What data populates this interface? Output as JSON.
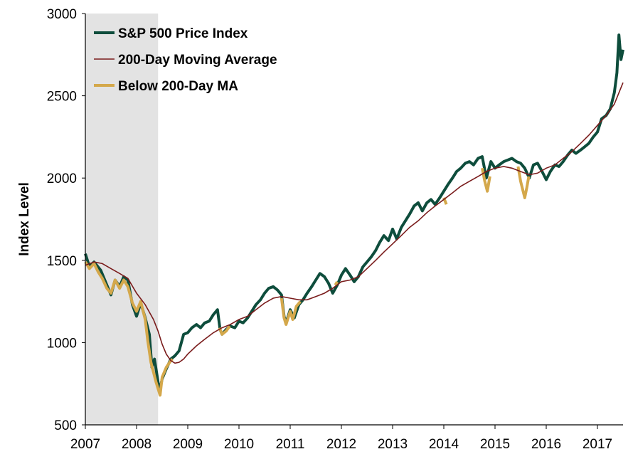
{
  "chart_data": {
    "type": "line",
    "title": "",
    "xlabel": "",
    "ylabel": "Index Level",
    "ylim": [
      500,
      3000
    ],
    "xlim": [
      2007.0,
      2017.5
    ],
    "y_ticks": [
      500,
      1000,
      1500,
      2000,
      2500,
      3000
    ],
    "x_ticks": [
      2007,
      2008,
      2009,
      2010,
      2011,
      2012,
      2013,
      2014,
      2015,
      2016,
      2017
    ],
    "x_tick_labels": [
      "2007",
      "2008",
      "2009",
      "2010",
      "2011",
      "2012",
      "2013",
      "2014",
      "2015",
      "2016",
      "2017"
    ],
    "y_tick_labels": [
      "500",
      "1000",
      "1500",
      "2000",
      "2500",
      "3000"
    ],
    "grid": false,
    "legend_position": "top-left",
    "shaded_region": {
      "x_start": 2007.0,
      "x_end": 2008.42,
      "color": "#e3e3e3"
    },
    "colors": {
      "price": "#0e4d3c",
      "ma": "#7a1c1c",
      "below": "#d4a84b"
    },
    "series": [
      {
        "name": "S&P 500 Price Index",
        "color": "#0e4d3c",
        "points": [
          [
            2007.0,
            1540
          ],
          [
            2007.08,
            1460
          ],
          [
            2007.17,
            1490
          ],
          [
            2007.3,
            1440
          ],
          [
            2007.42,
            1350
          ],
          [
            2007.5,
            1290
          ],
          [
            2007.58,
            1380
          ],
          [
            2007.67,
            1340
          ],
          [
            2007.75,
            1400
          ],
          [
            2007.83,
            1380
          ],
          [
            2007.92,
            1230
          ],
          [
            2008.0,
            1160
          ],
          [
            2008.08,
            1240
          ],
          [
            2008.17,
            1150
          ],
          [
            2008.25,
            1050
          ],
          [
            2008.3,
            850
          ],
          [
            2008.35,
            900
          ],
          [
            2008.4,
            800
          ],
          [
            2008.45,
            700
          ],
          [
            2008.5,
            780
          ],
          [
            2008.58,
            840
          ],
          [
            2008.67,
            900
          ],
          [
            2008.75,
            920
          ],
          [
            2008.83,
            950
          ],
          [
            2008.92,
            1050
          ],
          [
            2009.0,
            1060
          ],
          [
            2009.08,
            1090
          ],
          [
            2009.17,
            1110
          ],
          [
            2009.25,
            1090
          ],
          [
            2009.33,
            1120
          ],
          [
            2009.42,
            1130
          ],
          [
            2009.5,
            1170
          ],
          [
            2009.58,
            1200
          ],
          [
            2009.63,
            1080
          ],
          [
            2009.67,
            1050
          ],
          [
            2009.75,
            1080
          ],
          [
            2009.83,
            1100
          ],
          [
            2009.92,
            1090
          ],
          [
            2010.0,
            1130
          ],
          [
            2010.08,
            1120
          ],
          [
            2010.17,
            1150
          ],
          [
            2010.25,
            1190
          ],
          [
            2010.33,
            1230
          ],
          [
            2010.42,
            1260
          ],
          [
            2010.5,
            1300
          ],
          [
            2010.58,
            1330
          ],
          [
            2010.67,
            1340
          ],
          [
            2010.75,
            1320
          ],
          [
            2010.83,
            1290
          ],
          [
            2010.88,
            1160
          ],
          [
            2010.92,
            1120
          ],
          [
            2011.0,
            1200
          ],
          [
            2011.08,
            1150
          ],
          [
            2011.17,
            1230
          ],
          [
            2011.25,
            1260
          ],
          [
            2011.33,
            1300
          ],
          [
            2011.42,
            1340
          ],
          [
            2011.5,
            1380
          ],
          [
            2011.58,
            1420
          ],
          [
            2011.67,
            1400
          ],
          [
            2011.75,
            1360
          ],
          [
            2011.83,
            1300
          ],
          [
            2011.92,
            1350
          ],
          [
            2012.0,
            1410
          ],
          [
            2012.08,
            1450
          ],
          [
            2012.17,
            1410
          ],
          [
            2012.25,
            1370
          ],
          [
            2012.33,
            1400
          ],
          [
            2012.42,
            1460
          ],
          [
            2012.5,
            1490
          ],
          [
            2012.58,
            1520
          ],
          [
            2012.67,
            1560
          ],
          [
            2012.75,
            1610
          ],
          [
            2012.83,
            1650
          ],
          [
            2012.92,
            1620
          ],
          [
            2013.0,
            1690
          ],
          [
            2013.08,
            1630
          ],
          [
            2013.17,
            1700
          ],
          [
            2013.25,
            1740
          ],
          [
            2013.33,
            1780
          ],
          [
            2013.42,
            1830
          ],
          [
            2013.5,
            1850
          ],
          [
            2013.58,
            1800
          ],
          [
            2013.67,
            1850
          ],
          [
            2013.75,
            1870
          ],
          [
            2013.83,
            1840
          ],
          [
            2013.92,
            1880
          ],
          [
            2014.0,
            1920
          ],
          [
            2014.08,
            1960
          ],
          [
            2014.17,
            2000
          ],
          [
            2014.25,
            2040
          ],
          [
            2014.33,
            2060
          ],
          [
            2014.42,
            2090
          ],
          [
            2014.5,
            2100
          ],
          [
            2014.58,
            2080
          ],
          [
            2014.67,
            2120
          ],
          [
            2014.75,
            2130
          ],
          [
            2014.83,
            2000
          ],
          [
            2014.92,
            2100
          ],
          [
            2015.0,
            2060
          ],
          [
            2015.08,
            2080
          ],
          [
            2015.17,
            2100
          ],
          [
            2015.25,
            2110
          ],
          [
            2015.33,
            2120
          ],
          [
            2015.42,
            2100
          ],
          [
            2015.5,
            2090
          ],
          [
            2015.58,
            2060
          ],
          [
            2015.67,
            2000
          ],
          [
            2015.75,
            2080
          ],
          [
            2015.83,
            2090
          ],
          [
            2015.92,
            2040
          ],
          [
            2016.0,
            1990
          ],
          [
            2016.08,
            2040
          ],
          [
            2016.17,
            2080
          ],
          [
            2016.25,
            2070
          ],
          [
            2016.33,
            2100
          ],
          [
            2016.42,
            2140
          ],
          [
            2016.5,
            2170
          ],
          [
            2016.58,
            2150
          ],
          [
            2016.67,
            2170
          ],
          [
            2016.75,
            2190
          ],
          [
            2016.83,
            2210
          ],
          [
            2016.92,
            2250
          ],
          [
            2017.0,
            2280
          ],
          [
            2017.08,
            2360
          ],
          [
            2017.17,
            2380
          ],
          [
            2017.25,
            2420
          ],
          [
            2017.33,
            2520
          ],
          [
            2017.38,
            2640
          ],
          [
            2017.42,
            2870
          ],
          [
            2017.46,
            2720
          ],
          [
            2017.5,
            2780
          ]
        ]
      },
      {
        "name": "200-Day Moving Average",
        "color": "#7a1c1c",
        "points": [
          [
            2007.0,
            1470
          ],
          [
            2007.17,
            1490
          ],
          [
            2007.33,
            1480
          ],
          [
            2007.5,
            1450
          ],
          [
            2007.67,
            1420
          ],
          [
            2007.83,
            1390
          ],
          [
            2008.0,
            1300
          ],
          [
            2008.17,
            1230
          ],
          [
            2008.33,
            1140
          ],
          [
            2008.42,
            1070
          ],
          [
            2008.5,
            990
          ],
          [
            2008.58,
            930
          ],
          [
            2008.67,
            890
          ],
          [
            2008.75,
            875
          ],
          [
            2008.83,
            880
          ],
          [
            2008.92,
            900
          ],
          [
            2009.0,
            930
          ],
          [
            2009.17,
            980
          ],
          [
            2009.33,
            1020
          ],
          [
            2009.5,
            1060
          ],
          [
            2009.67,
            1090
          ],
          [
            2009.83,
            1110
          ],
          [
            2010.0,
            1140
          ],
          [
            2010.17,
            1160
          ],
          [
            2010.33,
            1200
          ],
          [
            2010.5,
            1240
          ],
          [
            2010.67,
            1270
          ],
          [
            2010.83,
            1280
          ],
          [
            2011.0,
            1270
          ],
          [
            2011.17,
            1260
          ],
          [
            2011.33,
            1260
          ],
          [
            2011.5,
            1280
          ],
          [
            2011.67,
            1300
          ],
          [
            2011.83,
            1330
          ],
          [
            2012.0,
            1370
          ],
          [
            2012.17,
            1380
          ],
          [
            2012.33,
            1400
          ],
          [
            2012.5,
            1450
          ],
          [
            2012.67,
            1500
          ],
          [
            2012.83,
            1550
          ],
          [
            2013.0,
            1600
          ],
          [
            2013.17,
            1650
          ],
          [
            2013.33,
            1700
          ],
          [
            2013.5,
            1740
          ],
          [
            2013.67,
            1790
          ],
          [
            2013.83,
            1830
          ],
          [
            2014.0,
            1870
          ],
          [
            2014.17,
            1910
          ],
          [
            2014.33,
            1950
          ],
          [
            2014.5,
            1980
          ],
          [
            2014.67,
            2010
          ],
          [
            2014.83,
            2040
          ],
          [
            2015.0,
            2060
          ],
          [
            2015.17,
            2070
          ],
          [
            2015.33,
            2060
          ],
          [
            2015.5,
            2040
          ],
          [
            2015.67,
            2020
          ],
          [
            2015.83,
            2030
          ],
          [
            2016.0,
            2060
          ],
          [
            2016.17,
            2080
          ],
          [
            2016.33,
            2120
          ],
          [
            2016.5,
            2160
          ],
          [
            2016.67,
            2210
          ],
          [
            2016.83,
            2260
          ],
          [
            2017.0,
            2320
          ],
          [
            2017.17,
            2380
          ],
          [
            2017.33,
            2450
          ],
          [
            2017.5,
            2580
          ]
        ]
      },
      {
        "name": "Below 200-Day MA",
        "color": "#d4a84b",
        "segments": [
          [
            [
              2007.0,
              1490
            ],
            [
              2007.08,
              1450
            ],
            [
              2007.17,
              1480
            ],
            [
              2007.25,
              1430
            ],
            [
              2007.33,
              1390
            ],
            [
              2007.42,
              1330
            ],
            [
              2007.5,
              1300
            ],
            [
              2007.58,
              1380
            ],
            [
              2007.67,
              1330
            ],
            [
              2007.75,
              1380
            ],
            [
              2007.83,
              1340
            ],
            [
              2007.92,
              1240
            ],
            [
              2008.0,
              1190
            ],
            [
              2008.08,
              1250
            ],
            [
              2008.17,
              1140
            ],
            [
              2008.22,
              1010
            ],
            [
              2008.28,
              880
            ],
            [
              2008.33,
              820
            ],
            [
              2008.38,
              760
            ],
            [
              2008.42,
              720
            ],
            [
              2008.46,
              680
            ],
            [
              2008.5,
              790
            ],
            [
              2008.58,
              850
            ],
            [
              2008.67,
              890
            ],
            [
              2008.7,
              900
            ]
          ],
          [
            [
              2009.62,
              1090
            ],
            [
              2009.67,
              1050
            ],
            [
              2009.75,
              1070
            ],
            [
              2009.82,
              1100
            ]
          ],
          [
            [
              2010.83,
              1270
            ],
            [
              2010.88,
              1150
            ],
            [
              2010.92,
              1110
            ],
            [
              2011.0,
              1190
            ],
            [
              2011.05,
              1140
            ],
            [
              2011.12,
              1220
            ],
            [
              2011.2,
              1250
            ]
          ],
          [
            [
              2011.88,
              1350
            ],
            [
              2011.92,
              1370
            ]
          ],
          [
            [
              2014.0,
              1880
            ],
            [
              2014.05,
              1840
            ]
          ],
          [
            [
              2014.75,
              2060
            ],
            [
              2014.8,
              1980
            ],
            [
              2014.85,
              1920
            ],
            [
              2014.9,
              2010
            ]
          ],
          [
            [
              2015.45,
              2070
            ],
            [
              2015.5,
              1980
            ],
            [
              2015.58,
              1880
            ],
            [
              2015.62,
              1940
            ],
            [
              2015.66,
              2010
            ]
          ]
        ]
      }
    ]
  }
}
